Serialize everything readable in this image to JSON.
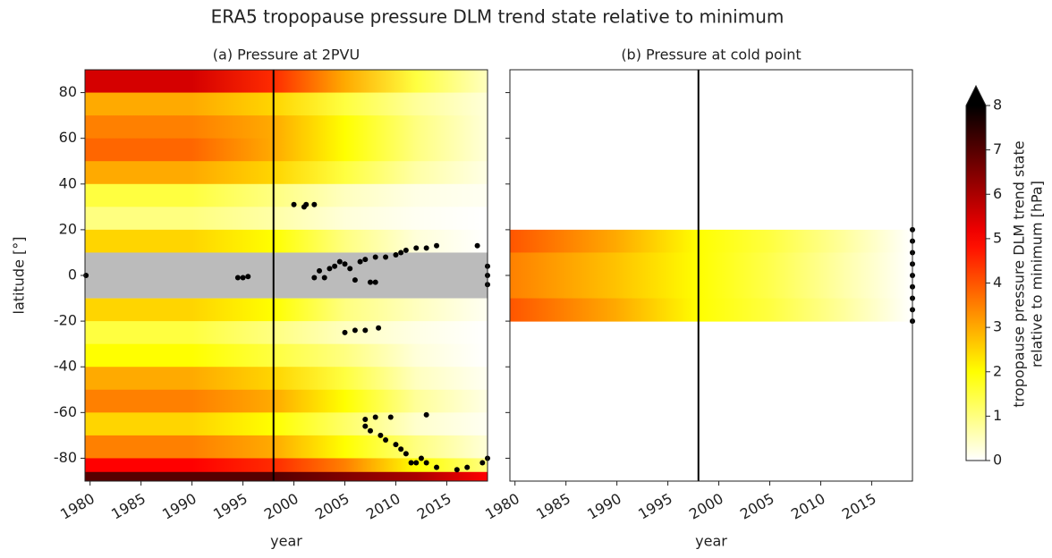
{
  "title": "ERA5 tropopause pressure DLM trend state relative to minimum",
  "chart_data": [
    {
      "type": "heatmap",
      "title": "(a) Pressure at 2PVU",
      "xlabel": "year",
      "ylabel": "latitude [°]",
      "xlim": [
        1979.5,
        2019
      ],
      "ylim": [
        -90,
        90
      ],
      "xticks": [
        1980,
        1985,
        1990,
        1995,
        2000,
        2005,
        2010,
        2015
      ],
      "yticks": [
        -80,
        -60,
        -40,
        -20,
        0,
        20,
        40,
        60,
        80
      ],
      "x_points": [
        1979.5,
        1990,
        1998,
        2005,
        2012,
        2019
      ],
      "rows": [
        {
          "lat": [
            80,
            90
          ],
          "values": [
            5.5,
            5.5,
            4.5,
            3,
            1.5,
            0.5
          ]
        },
        {
          "lat": [
            70,
            80
          ],
          "values": [
            3,
            3,
            2.5,
            1.5,
            0.8,
            0.3
          ]
        },
        {
          "lat": [
            60,
            70
          ],
          "values": [
            3.5,
            3.5,
            3,
            2,
            1,
            0.3
          ]
        },
        {
          "lat": [
            50,
            60
          ],
          "values": [
            3.8,
            3.8,
            3,
            2,
            1,
            0.3
          ]
        },
        {
          "lat": [
            40,
            50
          ],
          "values": [
            3,
            3,
            2.5,
            1.5,
            0.7,
            0.2
          ]
        },
        {
          "lat": [
            30,
            40
          ],
          "values": [
            1.5,
            1.5,
            1,
            0.5,
            0.2,
            0.1
          ]
        },
        {
          "lat": [
            20,
            30
          ],
          "values": [
            1,
            1,
            0.7,
            0.3,
            0.1,
            0
          ]
        },
        {
          "lat": [
            10,
            20
          ],
          "values": [
            2.5,
            2.5,
            2,
            1,
            0.3,
            0
          ]
        },
        {
          "lat": [
            -20,
            -10
          ],
          "values": [
            2.5,
            2.5,
            2,
            1,
            0.5,
            0.1
          ]
        },
        {
          "lat": [
            -30,
            -20
          ],
          "values": [
            1.5,
            1.5,
            1,
            0.5,
            0.2,
            0
          ]
        },
        {
          "lat": [
            -40,
            -30
          ],
          "values": [
            2,
            2,
            1.5,
            1,
            0.3,
            0
          ]
        },
        {
          "lat": [
            -50,
            -40
          ],
          "values": [
            3,
            3,
            2.5,
            1.5,
            0.5,
            0.1
          ]
        },
        {
          "lat": [
            -60,
            -50
          ],
          "values": [
            3.5,
            3.5,
            3,
            2,
            0.8,
            0.2
          ]
        },
        {
          "lat": [
            -70,
            -60
          ],
          "values": [
            2.5,
            2.5,
            2,
            1.2,
            0.4,
            0.1
          ]
        },
        {
          "lat": [
            -80,
            -70
          ],
          "values": [
            3.5,
            3.5,
            3,
            2,
            1,
            0.3
          ]
        },
        {
          "lat": [
            -86,
            -80
          ],
          "values": [
            5,
            5,
            4.5,
            3.5,
            2,
            1
          ]
        },
        {
          "lat": [
            -90,
            -86
          ],
          "values": [
            7,
            7,
            7,
            6.5,
            6,
            5
          ]
        }
      ],
      "shade": [
        -10,
        10
      ],
      "shade_color": "#bbbbbb",
      "vline": 1998,
      "points": {
        "x": [
          1979.6,
          1994.5,
          1995,
          1995.5,
          2000,
          2001,
          2001.2,
          2002,
          2002,
          2002.5,
          2003,
          2003.5,
          2004,
          2004.5,
          2005,
          2005.5,
          2006,
          2006.5,
          2007,
          2007.5,
          2008,
          2008,
          2009,
          2010,
          2010.5,
          2011,
          2012,
          2013,
          2014,
          2018,
          2005,
          2006,
          2007,
          2008.3,
          2007,
          2007,
          2007.5,
          2008,
          2008.5,
          2009,
          2009.5,
          2010,
          2010.5,
          2011,
          2011.5,
          2012,
          2013,
          2012.5,
          2013,
          2014,
          2016,
          2017,
          2018.5,
          2019,
          2019,
          2019,
          2019
        ],
        "y": [
          0,
          -1,
          -1,
          -0.5,
          31,
          30,
          31,
          31,
          -1,
          2,
          -1,
          3,
          4,
          6,
          5,
          3,
          -2,
          6,
          7,
          -3,
          8,
          -3,
          8,
          9,
          10,
          11,
          12,
          12,
          13,
          13,
          -25,
          -24,
          -24,
          -23,
          -63,
          -66,
          -68,
          -62,
          -70,
          -72,
          -62,
          -74,
          -76,
          -78,
          -82,
          -82,
          -82,
          -80,
          -61,
          -84,
          -85,
          -84,
          -82,
          -80,
          0,
          4,
          -4
        ]
      },
      "point_color": "#000000"
    },
    {
      "type": "heatmap",
      "title": "(b) Pressure at cold point",
      "xlabel": "year",
      "xlim": [
        1979.5,
        2019
      ],
      "ylim": [
        -90,
        90
      ],
      "xticks": [
        1980,
        1985,
        1990,
        1995,
        2000,
        2005,
        2010,
        2015
      ],
      "yticks": [
        -80,
        -60,
        -40,
        -20,
        0,
        20,
        40,
        60,
        80
      ],
      "x_points": [
        1979.5,
        1990,
        1998,
        2005,
        2012,
        2019
      ],
      "rows": [
        {
          "lat": [
            10,
            20
          ],
          "values": [
            4,
            3,
            2,
            1.5,
            0.8,
            0
          ]
        },
        {
          "lat": [
            0,
            10
          ],
          "values": [
            3.5,
            2.7,
            2,
            1.4,
            0.7,
            0
          ]
        },
        {
          "lat": [
            -10,
            0
          ],
          "values": [
            3.5,
            2.7,
            2,
            1.4,
            0.7,
            0
          ]
        },
        {
          "lat": [
            -20,
            -10
          ],
          "values": [
            4,
            3,
            2,
            1.5,
            0.8,
            0
          ]
        }
      ],
      "vline": 1998,
      "points": {
        "x": [
          2019,
          2019,
          2019,
          2019,
          2019,
          2019,
          2019,
          2019,
          2019
        ],
        "y": [
          -20,
          -15,
          -10,
          -5,
          0,
          5,
          10,
          15,
          20
        ]
      },
      "point_color": "#000000"
    }
  ],
  "colorbar": {
    "label": [
      "tropopause pressure DLM trend state",
      "relative to minimum [hPa]"
    ],
    "colormap": "hot_r",
    "ylim": [
      0,
      8
    ],
    "yticks": [
      0,
      1,
      2,
      3,
      4,
      5,
      6,
      7,
      8
    ],
    "extend": "max"
  }
}
